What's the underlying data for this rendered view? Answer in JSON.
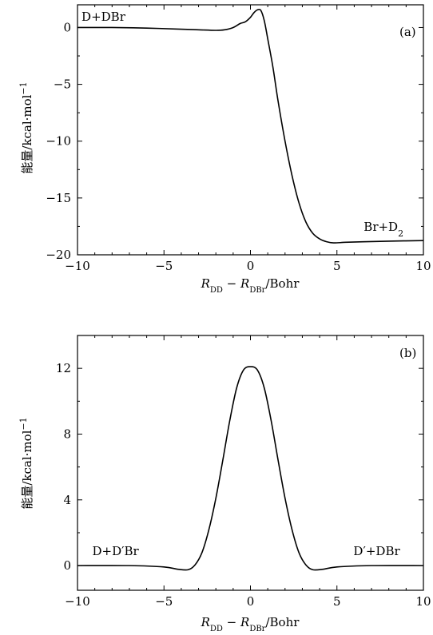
{
  "chart_data": [
    {
      "type": "line",
      "panel_label": "(a)",
      "xlabel": "R_DD − R_DBr/Bohr",
      "ylabel": "能量/kcal·mol⁻¹",
      "xlim": [
        -10,
        10
      ],
      "ylim": [
        -20,
        2
      ],
      "xticks": [
        -10,
        -5,
        0,
        5,
        10
      ],
      "xtick_labels": [
        "−10",
        "−5",
        "0",
        "5",
        "10"
      ],
      "yticks": [
        -20,
        -15,
        -10,
        -5,
        0
      ],
      "ytick_labels": [
        "−20",
        "−15",
        "−10",
        "−5",
        "0"
      ],
      "annotations": [
        {
          "text": "D+DBr",
          "x": -8.5,
          "y": 0.6
        },
        {
          "text": "Br+D₂",
          "x": 7.7,
          "y": -17.9
        }
      ],
      "series": [
        {
          "x": [
            -10,
            -8,
            -6,
            -4,
            -3,
            -2,
            -1.5,
            -1,
            -0.6,
            -0.3,
            0,
            0.2,
            0.4,
            0.6,
            0.8,
            1.0,
            1.3,
            1.6,
            2.0,
            2.4,
            2.8,
            3.2,
            3.6,
            4.0,
            4.4,
            4.8,
            5.5,
            6.5,
            8,
            10
          ],
          "y": [
            0,
            0,
            -0.05,
            -0.15,
            -0.2,
            -0.25,
            -0.2,
            0,
            0.35,
            0.5,
            0.9,
            1.3,
            1.55,
            1.5,
            0.6,
            -1.0,
            -3.5,
            -6.5,
            -10,
            -13,
            -15.4,
            -17.1,
            -18.1,
            -18.6,
            -18.85,
            -18.95,
            -18.9,
            -18.85,
            -18.8,
            -18.75
          ]
        }
      ]
    },
    {
      "type": "line",
      "panel_label": "(b)",
      "xlabel": "R_DD − R_DBr/Bohr",
      "ylabel": "能量/kcal·mol⁻¹",
      "xlim": [
        -10,
        10
      ],
      "ylim": [
        -1.5,
        14
      ],
      "xticks": [
        -10,
        -5,
        0,
        5,
        10
      ],
      "xtick_labels": [
        "−10",
        "−5",
        "0",
        "5",
        "10"
      ],
      "yticks": [
        0,
        4,
        8,
        12
      ],
      "ytick_labels": [
        "0",
        "4",
        "8",
        "12"
      ],
      "annotations": [
        {
          "text": "D+D′Br",
          "x": -7.8,
          "y": 0.65
        },
        {
          "text": "D′+DBr",
          "x": 7.3,
          "y": 0.65
        }
      ],
      "series": [
        {
          "x": [
            -10,
            -7,
            -5,
            -4.2,
            -3.6,
            -3.2,
            -2.8,
            -2.4,
            -2.0,
            -1.6,
            -1.2,
            -0.8,
            -0.4,
            0,
            0.4,
            0.8,
            1.2,
            1.6,
            2.0,
            2.4,
            2.8,
            3.2,
            3.6,
            4.2,
            5,
            7,
            10
          ],
          "y": [
            0,
            0,
            -0.08,
            -0.22,
            -0.25,
            0.05,
            0.8,
            2.2,
            4.1,
            6.4,
            8.8,
            10.8,
            11.9,
            12.1,
            11.9,
            10.8,
            8.8,
            6.4,
            4.1,
            2.2,
            0.8,
            0.05,
            -0.25,
            -0.22,
            -0.08,
            0,
            0
          ]
        }
      ]
    }
  ]
}
